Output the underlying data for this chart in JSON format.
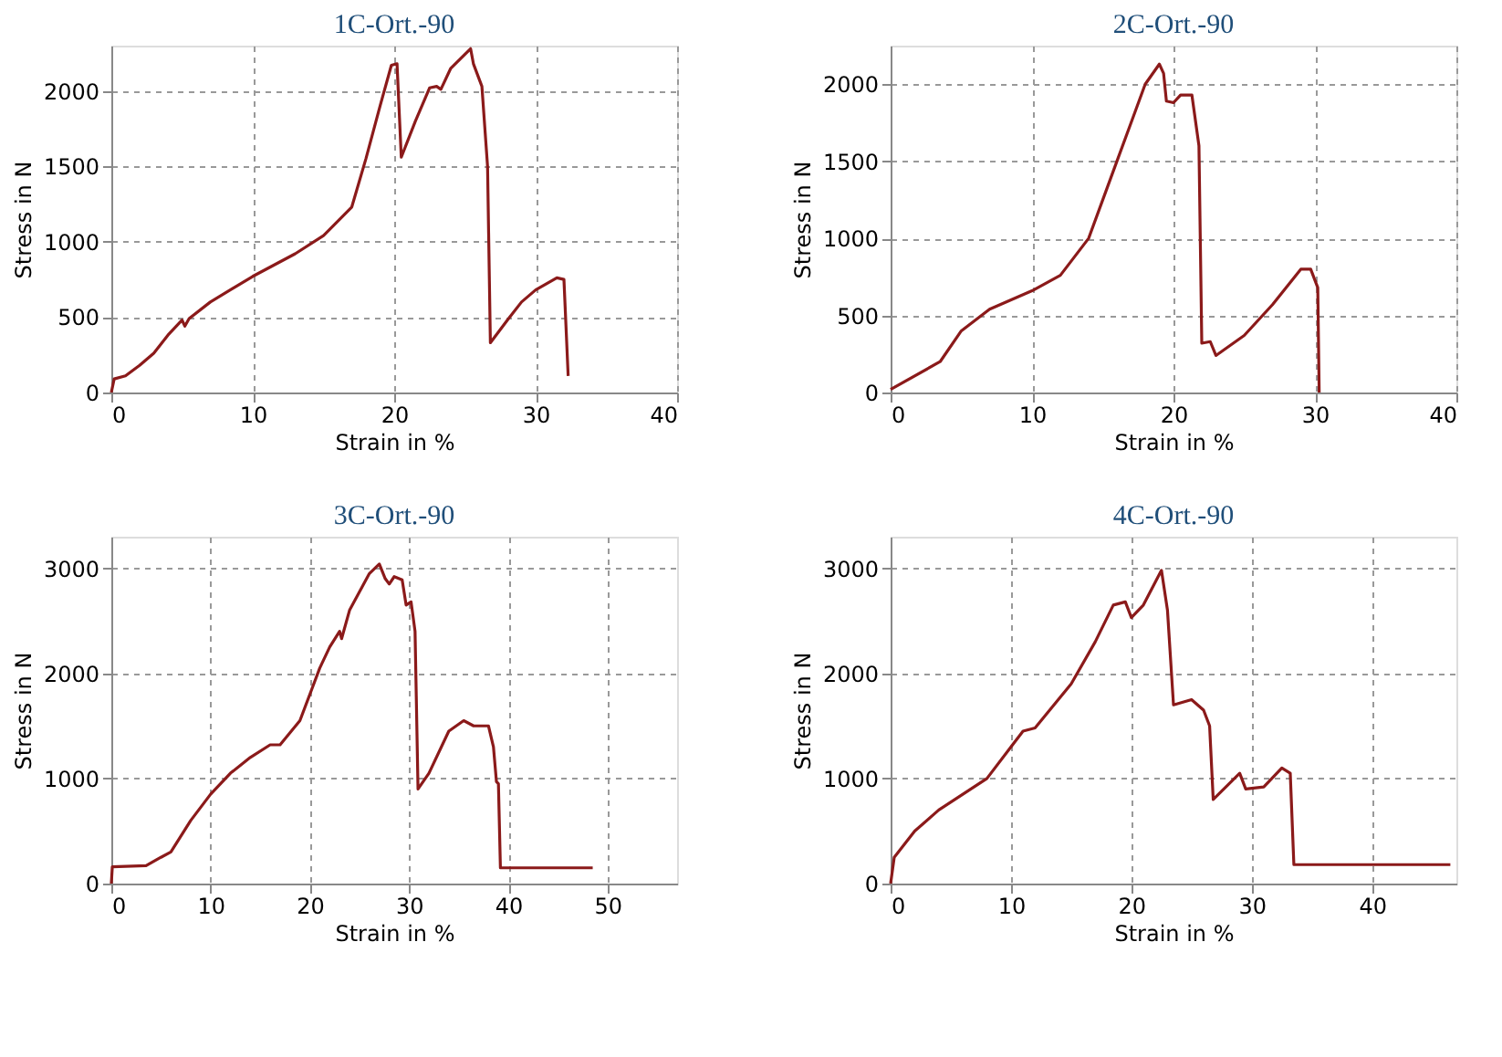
{
  "chart_data": [
    {
      "type": "line",
      "title": "1C-Ort.-90",
      "xlabel": "Strain in %",
      "ylabel": "Stress in N",
      "xlim": [
        0,
        40
      ],
      "ylim": [
        0,
        2300
      ],
      "xticks": [
        0,
        10,
        20,
        30,
        40
      ],
      "yticks": [
        0,
        500,
        1000,
        1500,
        2000
      ],
      "grid": true,
      "line_style": "solid",
      "series": [
        {
          "color": "#8b1a1a",
          "x": [
            0,
            0.2,
            1,
            2,
            3,
            4,
            5,
            5.2,
            5.5,
            7,
            10,
            13,
            15,
            17,
            18,
            19,
            19.8,
            20.2,
            20.5,
            21.5,
            22.5,
            23,
            23.3,
            24,
            25.4,
            25.6,
            26.2,
            26.6,
            26.8,
            28,
            29,
            30,
            31.5,
            32,
            32.3
          ],
          "values": [
            0,
            90,
            110,
            180,
            260,
            380,
            480,
            440,
            490,
            600,
            770,
            920,
            1040,
            1230,
            1550,
            1900,
            2170,
            2180,
            1560,
            1800,
            2020,
            2030,
            2010,
            2150,
            2280,
            2180,
            2030,
            1500,
            330,
            480,
            600,
            680,
            760,
            750,
            110
          ]
        }
      ]
    },
    {
      "type": "line",
      "title": "2C-Ort.-90",
      "xlabel": "Strain in %",
      "ylabel": "Stress in N",
      "xlim": [
        0,
        40
      ],
      "ylim": [
        0,
        2250
      ],
      "xticks": [
        0,
        10,
        20,
        30,
        40
      ],
      "yticks": [
        0,
        500,
        1000,
        1500,
        2000
      ],
      "grid": true,
      "line_style": "solid",
      "series": [
        {
          "color": "#8b1a1a",
          "x": [
            0,
            3.5,
            5,
            7,
            10,
            12,
            13,
            14,
            15,
            16,
            17,
            18,
            19,
            19.3,
            19.5,
            20,
            20.5,
            21.3,
            21.8,
            22,
            22.6,
            23,
            25,
            27,
            29,
            29.7,
            30.2,
            30.3
          ],
          "values": [
            20,
            200,
            400,
            540,
            660,
            760,
            880,
            1000,
            1250,
            1500,
            1750,
            2000,
            2130,
            2070,
            1890,
            1880,
            1930,
            1930,
            1600,
            320,
            330,
            240,
            370,
            570,
            800,
            800,
            680,
            0
          ]
        }
      ]
    },
    {
      "type": "line",
      "title": "3C-Ort.-90",
      "xlabel": "Strain in %",
      "ylabel": "Stress in N",
      "xlim": [
        0,
        57
      ],
      "ylim": [
        0,
        3300
      ],
      "xticks": [
        0,
        10,
        20,
        30,
        40,
        50
      ],
      "yticks": [
        0,
        1000,
        2000,
        3000
      ],
      "grid": true,
      "line_style": "solid",
      "series": [
        {
          "color": "#8b1a1a",
          "x": [
            0,
            0.1,
            3.5,
            5,
            6,
            8,
            10,
            12,
            14,
            16,
            17,
            19,
            20,
            21,
            22,
            23,
            23.2,
            24,
            26,
            27,
            27.6,
            28,
            28.5,
            29.3,
            29.7,
            30.2,
            30.6,
            30.9,
            32,
            34,
            35.5,
            36.5,
            38,
            38.5,
            38.8,
            39,
            39.2,
            48.5
          ],
          "values": [
            0,
            160,
            170,
            250,
            300,
            600,
            850,
            1050,
            1200,
            1320,
            1320,
            1550,
            1800,
            2050,
            2250,
            2400,
            2330,
            2600,
            2950,
            3040,
            2900,
            2850,
            2920,
            2890,
            2650,
            2680,
            2400,
            900,
            1050,
            1450,
            1550,
            1500,
            1500,
            1300,
            970,
            950,
            150,
            150
          ]
        }
      ]
    },
    {
      "type": "line",
      "title": "4C-Ort.-90",
      "xlabel": "Strain in %",
      "ylabel": "Stress in N",
      "xlim": [
        0,
        47
      ],
      "ylim": [
        0,
        3300
      ],
      "xticks": [
        0,
        10,
        20,
        30,
        40
      ],
      "yticks": [
        0,
        1000,
        2000,
        3000
      ],
      "grid": true,
      "line_style": "solid",
      "series": [
        {
          "color": "#8b1a1a",
          "x": [
            0,
            0.3,
            2,
            4,
            8,
            10,
            11,
            12,
            15,
            17,
            18.5,
            19.5,
            20,
            21,
            22.5,
            23,
            23.5,
            25,
            26,
            26.5,
            26.8,
            29,
            29.5,
            31,
            32.5,
            33.2,
            33.5,
            46.5
          ],
          "values": [
            0,
            250,
            500,
            700,
            1000,
            1300,
            1450,
            1480,
            1900,
            2300,
            2650,
            2680,
            2530,
            2650,
            2980,
            2600,
            1700,
            1750,
            1650,
            1500,
            800,
            1050,
            900,
            920,
            1100,
            1050,
            180,
            180
          ]
        }
      ]
    }
  ]
}
